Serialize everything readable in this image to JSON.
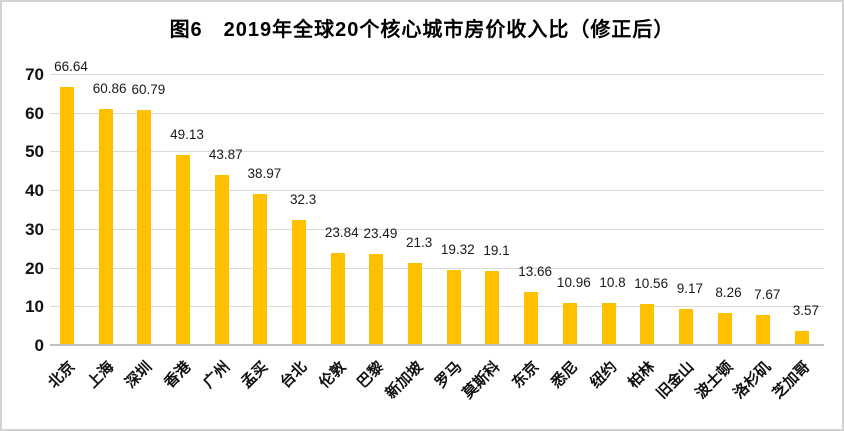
{
  "figure": {
    "title": "图6　2019年全球20个核心城市房价收入比（修正后）"
  },
  "chart_data": {
    "type": "bar",
    "title": "图6　2019年全球20个核心城市房价收入比（修正后）",
    "categories": [
      "北京",
      "上海",
      "深圳",
      "香港",
      "广州",
      "孟买",
      "台北",
      "伦敦",
      "巴黎",
      "新加坡",
      "罗马",
      "莫斯科",
      "东京",
      "悉尼",
      "纽约",
      "柏林",
      "旧金山",
      "波士顿",
      "洛杉矶",
      "芝加哥"
    ],
    "values": [
      66.64,
      60.86,
      60.79,
      49.13,
      43.87,
      38.97,
      32.3,
      23.84,
      23.49,
      21.3,
      19.32,
      19.1,
      13.66,
      10.96,
      10.8,
      10.56,
      9.17,
      8.26,
      7.67,
      3.57
    ],
    "value_labels": [
      "66.64",
      "60.86",
      "60.79",
      "49.13",
      "43.87",
      "38.97",
      "32.3",
      "23.84",
      "23.49",
      "21.3",
      "19.32",
      "19.1",
      "13.66",
      "10.96",
      "10.8",
      "10.56",
      "9.17",
      "8.26",
      "7.67",
      "3.57"
    ],
    "xlabel": "",
    "ylabel": "",
    "ylim": [
      0,
      70
    ],
    "y_ticks": [
      0,
      10,
      20,
      30,
      40,
      50,
      60,
      70
    ],
    "grid": true,
    "legend": "none",
    "colors": {
      "bar": "#FFC000",
      "gridline": "#D9D9D9",
      "axis_line": "#BFBFBF",
      "text": "#000000",
      "background": "#FFFFFF",
      "border": "#D2D2D2"
    }
  }
}
